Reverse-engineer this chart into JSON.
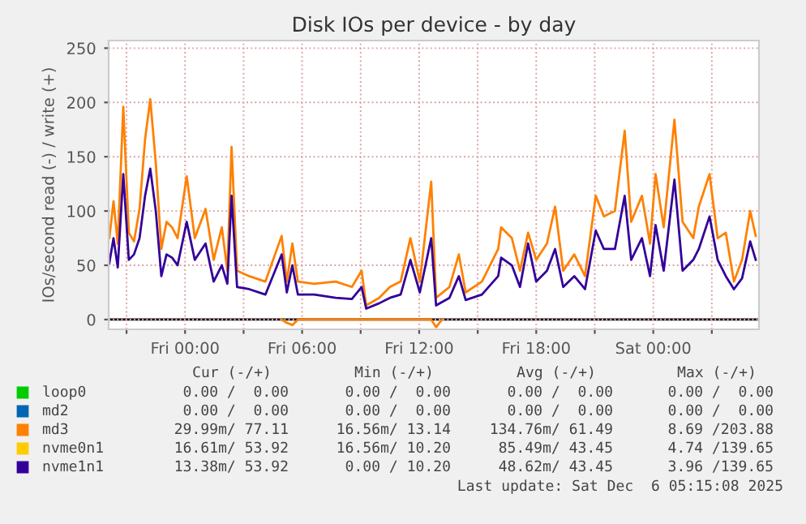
{
  "chart_data": {
    "type": "line",
    "title": "Disk IOs per device - by day",
    "ylabel": "IOs/second read (-) / write (+)",
    "x": [
      "2025-12-04T20:07",
      "2025-12-04T20:20",
      "2025-12-04T20:33",
      "2025-12-04T20:50",
      "2025-12-04T21:07",
      "2025-12-04T21:23",
      "2025-12-04T21:40",
      "2025-12-04T21:57",
      "2025-12-04T22:13",
      "2025-12-04T22:30",
      "2025-12-04T22:47",
      "2025-12-04T23:03",
      "2025-12-04T23:20",
      "2025-12-04T23:37",
      "2025-12-05T00:05",
      "2025-12-05T00:30",
      "2025-12-05T01:03",
      "2025-12-05T01:28",
      "2025-12-05T01:53",
      "2025-12-05T02:10",
      "2025-12-05T02:23",
      "2025-12-05T02:40",
      "2025-12-05T03:17",
      "2025-12-05T04:07",
      "2025-12-05T04:57",
      "2025-12-05T05:13",
      "2025-12-05T05:30",
      "2025-12-05T05:47",
      "2025-12-05T06:37",
      "2025-12-05T07:43",
      "2025-12-05T08:33",
      "2025-12-05T09:03",
      "2025-12-05T09:17",
      "2025-12-05T09:57",
      "2025-12-05T10:30",
      "2025-12-05T11:03",
      "2025-12-05T11:33",
      "2025-12-05T12:02",
      "2025-12-05T12:37",
      "2025-12-05T12:52",
      "2025-12-05T13:33",
      "2025-12-05T14:02",
      "2025-12-05T14:23",
      "2025-12-05T15:13",
      "2025-12-05T16:03",
      "2025-12-05T16:12",
      "2025-12-05T16:45",
      "2025-12-05T17:10",
      "2025-12-05T17:35",
      "2025-12-05T18:00",
      "2025-12-05T18:33",
      "2025-12-05T18:58",
      "2025-12-05T19:23",
      "2025-12-05T19:57",
      "2025-12-05T20:30",
      "2025-12-05T21:03",
      "2025-12-05T21:28",
      "2025-12-05T22:02",
      "2025-12-05T22:32",
      "2025-12-05T22:52",
      "2025-12-05T23:25",
      "2025-12-05T23:50",
      "2025-12-06T00:07",
      "2025-12-06T00:32",
      "2025-12-06T01:05",
      "2025-12-06T01:30",
      "2025-12-06T02:03",
      "2025-12-06T02:20",
      "2025-12-06T02:53",
      "2025-12-06T03:18",
      "2025-12-06T03:43",
      "2025-12-06T04:08",
      "2025-12-06T04:33",
      "2025-12-06T04:58",
      "2025-12-06T05:15"
    ],
    "series": [
      {
        "name": "loop0",
        "color": "#00cc00",
        "values": [
          null,
          null,
          null,
          null,
          null,
          null,
          null,
          null,
          null,
          null,
          null,
          null,
          null,
          null,
          null,
          null,
          null,
          null,
          null,
          null,
          null,
          null,
          null,
          null,
          null,
          null,
          null,
          null,
          null,
          null,
          null,
          null,
          null,
          null,
          null,
          null,
          null,
          null,
          null,
          null,
          null,
          null,
          null,
          null,
          null,
          null,
          null,
          null,
          null,
          null,
          null,
          null,
          null,
          null,
          null,
          null,
          null,
          null,
          null,
          null,
          null,
          null,
          null,
          null,
          null,
          null,
          null,
          null,
          null,
          null,
          null,
          null,
          null,
          null,
          null
        ]
      },
      {
        "name": "md2",
        "color": "#0066b3",
        "values": [
          null,
          null,
          null,
          null,
          null,
          null,
          null,
          null,
          null,
          null,
          null,
          null,
          null,
          null,
          null,
          null,
          null,
          null,
          null,
          null,
          null,
          null,
          null,
          null,
          null,
          null,
          null,
          null,
          null,
          null,
          null,
          null,
          null,
          null,
          null,
          null,
          null,
          null,
          null,
          null,
          null,
          null,
          null,
          null,
          null,
          null,
          null,
          null,
          null,
          null,
          null,
          null,
          null,
          null,
          null,
          null,
          null,
          null,
          null,
          null,
          null,
          null,
          null,
          null,
          null,
          null,
          null,
          null,
          null,
          null,
          null,
          null,
          null,
          null,
          null
        ]
      },
      {
        "name": "md3",
        "color": "#ff8000",
        "values": [
          75,
          109,
          70,
          196,
          80,
          72,
          102,
          166,
          203,
          144,
          65,
          90,
          85,
          75,
          132,
          75,
          102,
          55,
          85,
          45,
          159,
          45,
          40,
          35,
          77,
          35,
          70,
          35,
          33,
          35,
          30,
          45,
          13,
          20,
          30,
          35,
          75,
          35,
          127,
          20,
          30,
          60,
          25,
          35,
          65,
          85,
          75,
          45,
          80,
          55,
          70,
          104,
          45,
          60,
          40,
          114,
          95,
          100,
          174,
          90,
          114,
          70,
          134,
          85,
          184,
          90,
          75,
          104,
          134,
          75,
          80,
          35,
          55,
          100,
          77
        ]
      },
      {
        "color": "#ff8000",
        "x": [
          "2025-12-05T04:57",
          "2025-12-05T05:13",
          "2025-12-05T05:30",
          "2025-12-05T05:47",
          "2025-12-05T12:37",
          "2025-12-05T12:52",
          "2025-12-05T13:10"
        ],
        "values": [
          0,
          -3,
          -5,
          0,
          0,
          -7,
          0
        ]
      },
      {
        "name": "nvme0n1",
        "color": "#ffcc00",
        "values": [
          null,
          null,
          null,
          null,
          null,
          null,
          null,
          null,
          null,
          null,
          null,
          null,
          null,
          null,
          null,
          null,
          null,
          null,
          null,
          null,
          null,
          null,
          null,
          null,
          null,
          null,
          null,
          null,
          null,
          null,
          null,
          null,
          null,
          null,
          null,
          null,
          null,
          null,
          null,
          null,
          null,
          null,
          null,
          null,
          null,
          null,
          null,
          null,
          null,
          null,
          null,
          null,
          null,
          null,
          null,
          null,
          null,
          null,
          null,
          null,
          null,
          null,
          null,
          null,
          null,
          null,
          null,
          null,
          null,
          null,
          null,
          null,
          null,
          null,
          null
        ]
      },
      {
        "name": "nvme1n1",
        "color": "#330099",
        "values": [
          52,
          75,
          48,
          134,
          55,
          60,
          75,
          114,
          139,
          100,
          40,
          60,
          57,
          50,
          90,
          55,
          70,
          35,
          50,
          33,
          114,
          30,
          28,
          23,
          60,
          25,
          50,
          23,
          23,
          20,
          19,
          30,
          10,
          15,
          20,
          23,
          55,
          25,
          75,
          13,
          20,
          40,
          18,
          23,
          40,
          57,
          50,
          30,
          70,
          35,
          45,
          65,
          30,
          40,
          28,
          82,
          65,
          65,
          114,
          55,
          75,
          40,
          87,
          45,
          129,
          45,
          55,
          65,
          95,
          55,
          40,
          28,
          38,
          72,
          55
        ]
      }
    ],
    "xlim": [
      "2025-12-04T20:05",
      "2025-12-06T05:25"
    ],
    "xticks": [
      {
        "value": "2025-12-04T21:00",
        "label": null
      },
      {
        "value": "2025-12-05T00:00",
        "label": "Fri 00:00"
      },
      {
        "value": "2025-12-05T03:00",
        "label": null
      },
      {
        "value": "2025-12-05T06:00",
        "label": "Fri 06:00"
      },
      {
        "value": "2025-12-05T09:00",
        "label": null
      },
      {
        "value": "2025-12-05T12:00",
        "label": "Fri 12:00"
      },
      {
        "value": "2025-12-05T15:00",
        "label": null
      },
      {
        "value": "2025-12-05T18:00",
        "label": "Fri 18:00"
      },
      {
        "value": "2025-12-05T21:00",
        "label": null
      },
      {
        "value": "2025-12-06T00:00",
        "label": "Sat 00:00"
      },
      {
        "value": "2025-12-06T03:00",
        "label": null
      }
    ],
    "ylim": [
      -9,
      257
    ],
    "yticks": [
      0,
      50,
      100,
      150,
      200,
      250
    ],
    "grid": true,
    "legend": "bottom",
    "ref_lines": [
      {
        "axis": "y",
        "value": 0,
        "color": "#000000"
      }
    ],
    "annotations": [
      "Cur (-/+)",
      "Min (-/+)",
      "Avg (-/+)",
      "Max (-/+)",
      "0.00 /  0.00",
      "0.00 /  0.00",
      "0.00 /  0.00",
      "0.00 /  0.00",
      "0.00 /  0.00",
      "0.00 /  0.00",
      "0.00 /  0.00",
      "0.00 /  0.00",
      "29.99m/ 77.11",
      "16.56m/ 13.14",
      "134.76m/ 61.49",
      "8.69 /203.88",
      "16.61m/ 53.92",
      "16.56m/ 10.20",
      "85.49m/ 43.45",
      "4.74 /139.65",
      "13.38m/ 53.92",
      "0.00 / 10.20",
      "48.62m/ 43.45",
      "3.96 /139.65",
      "Last update: Sat Dec  6 05:15:08 2025"
    ]
  }
}
